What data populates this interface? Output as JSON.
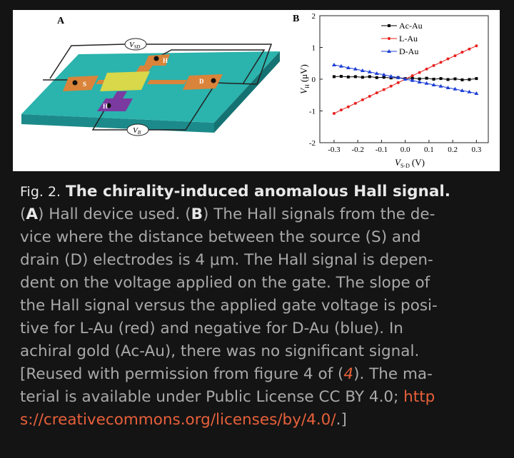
{
  "panel_a": {
    "label": "A",
    "v_sd": {
      "symbol": "V",
      "subscript": "SD"
    },
    "v_b": {
      "symbol": "V",
      "subscript": "B"
    },
    "electrodes": [
      "S",
      "D",
      "H",
      "H"
    ]
  },
  "chart_data": {
    "type": "line",
    "panel_label": "B",
    "xlabel": {
      "symbol": "V",
      "subscript": "S-D",
      "unit": "(V)"
    },
    "ylabel": {
      "symbol": "V",
      "subscript": "H",
      "unit": "(μV)"
    },
    "x": [
      -0.3,
      -0.27,
      -0.24,
      -0.21,
      -0.18,
      -0.15,
      -0.12,
      -0.09,
      -0.06,
      -0.03,
      0,
      0.03,
      0.06,
      0.09,
      0.12,
      0.15,
      0.18,
      0.21,
      0.24,
      0.27,
      0.3
    ],
    "series": [
      {
        "name": "Ac-Au",
        "color": "#000000",
        "marker": "square",
        "values": [
          0.08,
          0.09,
          0.07,
          0.08,
          0.06,
          0.08,
          0.05,
          0.06,
          0.04,
          0.05,
          0.02,
          0.03,
          0.01,
          0.03,
          0.0,
          0.02,
          -0.01,
          0.01,
          -0.02,
          -0.01,
          0.02
        ]
      },
      {
        "name": "L-Au",
        "color": "#e8201e",
        "marker": "circle",
        "values": [
          -1.08,
          -0.97,
          -0.87,
          -0.76,
          -0.65,
          -0.54,
          -0.43,
          -0.33,
          -0.22,
          -0.11,
          0.0,
          0.11,
          0.21,
          0.32,
          0.43,
          0.53,
          0.64,
          0.74,
          0.85,
          0.95,
          1.05
        ]
      },
      {
        "name": "D-Au",
        "color": "#1d3fd6",
        "marker": "triangle",
        "values": [
          0.45,
          0.41,
          0.36,
          0.32,
          0.27,
          0.23,
          0.18,
          0.14,
          0.09,
          0.05,
          0.0,
          -0.04,
          -0.09,
          -0.13,
          -0.18,
          -0.22,
          -0.27,
          -0.31,
          -0.36,
          -0.4,
          -0.45
        ]
      }
    ],
    "xlim": [
      -0.36,
      0.35
    ],
    "ylim": [
      -2,
      2
    ],
    "xticks": [
      -0.3,
      -0.2,
      -0.1,
      {
        "value": 0,
        "label": "0.0"
      },
      0.1,
      0.2,
      0.3
    ],
    "yticks": [
      -2,
      -1,
      0,
      1,
      2
    ],
    "legend": "upper-right"
  },
  "caption": {
    "label": "Fig. 2.",
    "title": "The chirality-induced anomalous Hall signal.",
    "lines": [
      [
        "(",
        "A",
        ") Hall device used. (",
        "B",
        ") The Hall signals from the de-"
      ],
      [
        "vice where the distance between the source (S) and"
      ],
      [
        "drain (D) electrodes is 4 μm. The Hall signal is depen-"
      ],
      [
        "dent on the voltage applied on the gate. The slope of"
      ],
      [
        "the Hall signal versus the applied gate voltage is posi-"
      ],
      [
        "tive for L-Au (red) and negative for D-Au (blue). In"
      ],
      [
        "achiral gold (Ac-Au), there was no significant signal."
      ],
      [
        "[Reused with permission from figure 4 of (",
        "4",
        "). The ma-"
      ],
      [
        "terial is available under Public License CC BY 4.0; ",
        "http"
      ],
      [
        "s://creativecommons.org/licenses/by/4.0/",
        ".]"
      ]
    ]
  }
}
